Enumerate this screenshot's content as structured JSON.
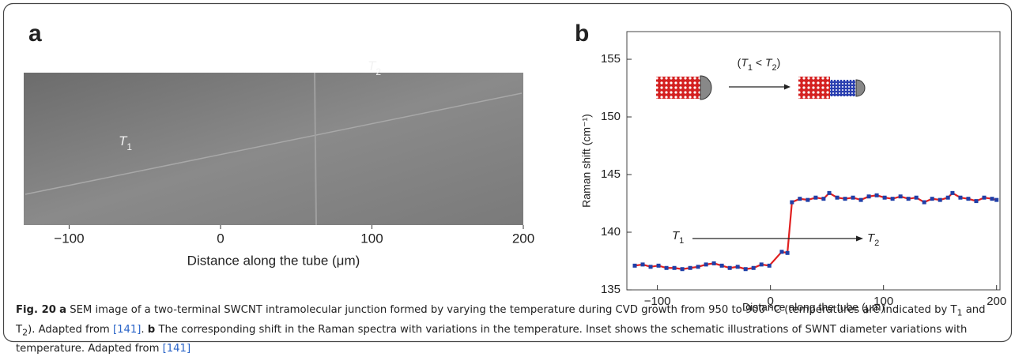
{
  "panel_a": {
    "label": "a",
    "image_labels": [
      {
        "main": "T",
        "sub": "1"
      },
      {
        "main": "T",
        "sub": "2"
      }
    ],
    "xlim": [
      -130,
      200
    ],
    "xticks": [
      {
        "value": -100,
        "label": "−100"
      },
      0,
      100,
      200
    ],
    "xlabel": "Distance along the tube (μm)"
  },
  "chart_data": {
    "type": "line",
    "panel_label": "b",
    "x": [
      -120,
      -113,
      -106,
      -99,
      -92,
      -85,
      -78,
      -71,
      -64,
      -57,
      -50,
      -43,
      -36,
      -29,
      -22,
      -15,
      -8,
      -1,
      10,
      15,
      19,
      26,
      33,
      40,
      47,
      52,
      59,
      66,
      73,
      80,
      87,
      94,
      101,
      108,
      115,
      122,
      129,
      136,
      143,
      150,
      157,
      161,
      168,
      175,
      182,
      189,
      196,
      200
    ],
    "series": [
      {
        "name": "Raman shift",
        "color": "#e02020",
        "marker_color": "#1f3fa8",
        "values": [
          137.1,
          137.2,
          137.0,
          137.1,
          136.9,
          136.9,
          136.8,
          136.9,
          137.0,
          137.2,
          137.3,
          137.1,
          136.9,
          137.0,
          136.8,
          136.9,
          137.2,
          137.1,
          138.3,
          138.2,
          142.6,
          142.9,
          142.8,
          143.0,
          142.9,
          143.4,
          143.0,
          142.9,
          143.0,
          142.8,
          143.1,
          143.2,
          143.0,
          142.9,
          143.1,
          142.9,
          143.0,
          142.6,
          142.9,
          142.8,
          143.0,
          143.4,
          143.0,
          142.9,
          142.7,
          143.0,
          142.9,
          142.8
        ]
      }
    ],
    "xlim": [
      -127,
      203
    ],
    "xticks": [
      {
        "value": -100,
        "label": "−100"
      },
      0,
      100,
      200
    ],
    "ylim": [
      135,
      157.4
    ],
    "yticks": [
      135,
      140,
      145,
      150,
      155
    ],
    "xlabel": "Distance along the tube (μm)",
    "ylabel": "Raman shift (cm⁻¹)",
    "inset_condition": [
      {
        "text": "(",
        "style": "plain"
      },
      {
        "text": "T",
        "style": "italic"
      },
      {
        "text": "1",
        "style": "sub"
      },
      {
        "text": " < ",
        "style": "plain"
      },
      {
        "text": "T",
        "style": "italic"
      },
      {
        "text": "2",
        "style": "sub"
      },
      {
        "text": ")",
        "style": "plain"
      }
    ],
    "arrow_start": [
      {
        "text": "T",
        "style": "italic"
      },
      {
        "text": "1",
        "style": "sub"
      }
    ],
    "arrow_end": [
      {
        "text": "T",
        "style": "italic"
      },
      {
        "text": "2",
        "style": "sub"
      }
    ]
  },
  "caption": [
    {
      "text": "Fig. 20",
      "style": "bold"
    },
    {
      "text": " ",
      "style": "plain"
    },
    {
      "text": "a",
      "style": "bold"
    },
    {
      "text": " SEM image of a two-terminal SWCNT intramolecular junction formed by varying the temperature during CVD growth from 950 to 900 °C (temperatures are indicated by T",
      "style": "plain"
    },
    {
      "text": "1",
      "style": "sub"
    },
    {
      "text": " and T",
      "style": "plain"
    },
    {
      "text": "2",
      "style": "sub"
    },
    {
      "text": "). Adapted from ",
      "style": "plain"
    },
    {
      "text": "[141]",
      "style": "link"
    },
    {
      "text": ". ",
      "style": "plain"
    },
    {
      "text": "b",
      "style": "bold"
    },
    {
      "text": " The corresponding shift in the Raman spectra with variations in the temperature. Inset shows the schematic illustrations of SWNT diameter variations with temperature. Adapted from ",
      "style": "plain"
    },
    {
      "text": "[141]",
      "style": "link"
    }
  ]
}
